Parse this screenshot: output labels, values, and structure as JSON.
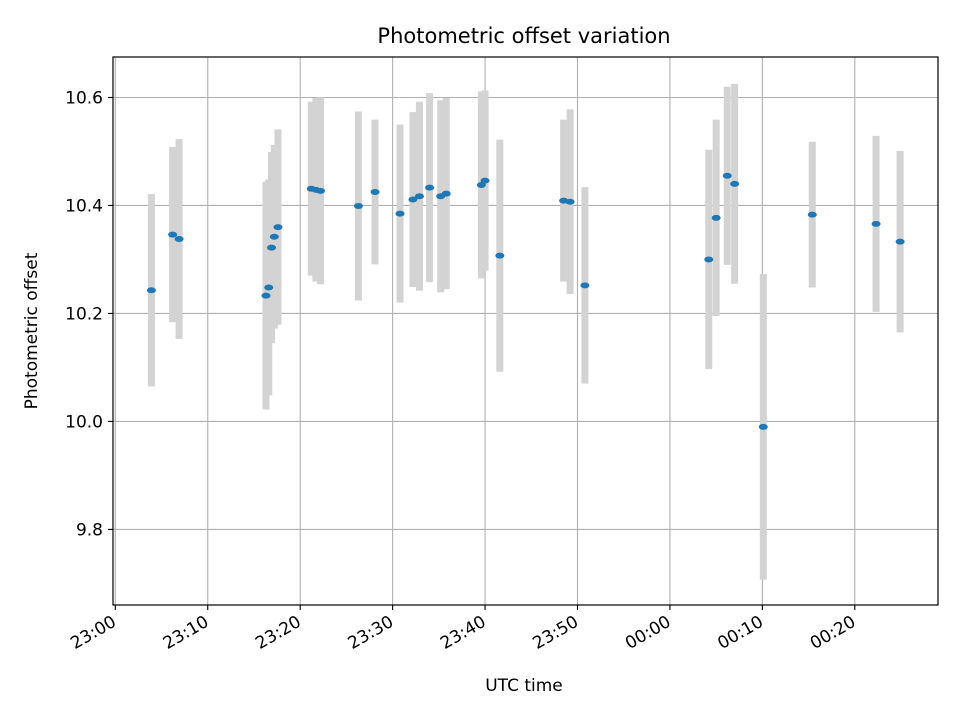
{
  "chart_data": {
    "type": "scatter",
    "title": "Photometric offset variation",
    "xlabel": "UTC time",
    "ylabel": "Photometric offset",
    "x_tick_labels": [
      "23:00",
      "23:10",
      "23:20",
      "23:30",
      "23:40",
      "23:50",
      "00:00",
      "00:10",
      "00:20"
    ],
    "x_tick_minutes": [
      0,
      10,
      20,
      30,
      40,
      50,
      60,
      70,
      80
    ],
    "x_origin_time": "23:00",
    "xlim_minutes": [
      -0.25,
      89.0
    ],
    "y_tick_labels": [
      "9.8",
      "10.0",
      "10.2",
      "10.4",
      "10.6"
    ],
    "y_ticks": [
      9.8,
      10.0,
      10.2,
      10.4,
      10.6
    ],
    "ylim": [
      9.66,
      10.675
    ],
    "grid": true,
    "colors": {
      "point": "#1f77b4",
      "errorbar": "#d3d3d3",
      "grid": "#b0b0b0"
    },
    "points": [
      {
        "x": 3.9,
        "y": 10.243,
        "err": 0.178
      },
      {
        "x": 6.2,
        "y": 10.346,
        "err": 0.162
      },
      {
        "x": 6.9,
        "y": 10.338,
        "err": 0.185
      },
      {
        "x": 16.3,
        "y": 10.233,
        "err": 0.211
      },
      {
        "x": 16.6,
        "y": 10.248,
        "err": 0.2
      },
      {
        "x": 16.9,
        "y": 10.322,
        "err": 0.177
      },
      {
        "x": 17.2,
        "y": 10.342,
        "err": 0.17
      },
      {
        "x": 17.6,
        "y": 10.36,
        "err": 0.181
      },
      {
        "x": 21.2,
        "y": 10.431,
        "err": 0.161
      },
      {
        "x": 21.7,
        "y": 10.429,
        "err": 0.17
      },
      {
        "x": 22.2,
        "y": 10.427,
        "err": 0.173
      },
      {
        "x": 26.3,
        "y": 10.399,
        "err": 0.175
      },
      {
        "x": 28.1,
        "y": 10.425,
        "err": 0.134
      },
      {
        "x": 30.8,
        "y": 10.385,
        "err": 0.165
      },
      {
        "x": 32.2,
        "y": 10.411,
        "err": 0.162
      },
      {
        "x": 32.9,
        "y": 10.417,
        "err": 0.175
      },
      {
        "x": 34.0,
        "y": 10.433,
        "err": 0.175
      },
      {
        "x": 35.2,
        "y": 10.417,
        "err": 0.178
      },
      {
        "x": 35.8,
        "y": 10.422,
        "err": 0.177
      },
      {
        "x": 39.6,
        "y": 10.438,
        "err": 0.173
      },
      {
        "x": 40.0,
        "y": 10.446,
        "err": 0.167
      },
      {
        "x": 41.6,
        "y": 10.307,
        "err": 0.215
      },
      {
        "x": 48.5,
        "y": 10.409,
        "err": 0.15
      },
      {
        "x": 49.2,
        "y": 10.407,
        "err": 0.171
      },
      {
        "x": 50.8,
        "y": 10.252,
        "err": 0.182
      },
      {
        "x": 64.2,
        "y": 10.3,
        "err": 0.203
      },
      {
        "x": 65.0,
        "y": 10.377,
        "err": 0.182
      },
      {
        "x": 66.2,
        "y": 10.455,
        "err": 0.165
      },
      {
        "x": 67.0,
        "y": 10.44,
        "err": 0.185
      },
      {
        "x": 70.1,
        "y": 9.99,
        "err": 0.283
      },
      {
        "x": 75.4,
        "y": 10.383,
        "err": 0.135
      },
      {
        "x": 82.3,
        "y": 10.366,
        "err": 0.163
      },
      {
        "x": 84.9,
        "y": 10.333,
        "err": 0.168
      }
    ]
  }
}
